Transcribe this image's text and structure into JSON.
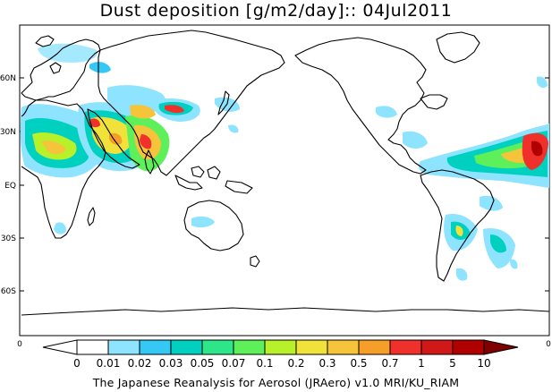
{
  "title": "Dust deposition [g/m2/day]:: 04Jul2011",
  "lat_labels": [
    "60N",
    "30N",
    "EQ",
    "30S",
    "60S"
  ],
  "axis_corner_labels": {
    "left": "0",
    "right": "0"
  },
  "colorbar": {
    "labels": [
      "0",
      "0.01",
      "0.02",
      "0.03",
      "0.05",
      "0.07",
      "0.1",
      "0.2",
      "0.3",
      "0.5",
      "0.7",
      "1",
      "5",
      "10"
    ],
    "colors": [
      "#ffffff",
      "#8ee4ff",
      "#35c8f5",
      "#00d0c0",
      "#2ee68a",
      "#5ef05a",
      "#b8f02a",
      "#f0e23a",
      "#f6c43a",
      "#f69e2a",
      "#f0302a",
      "#d01818",
      "#b00000",
      "#800000"
    ]
  },
  "credit": "The Japanese Reanalysis for Aerosol (JRAero) v1.0 MRI/KU_RIAM",
  "legend_icons": {
    "left": "left-triangle-icon",
    "right": "right-triangle-icon"
  }
}
